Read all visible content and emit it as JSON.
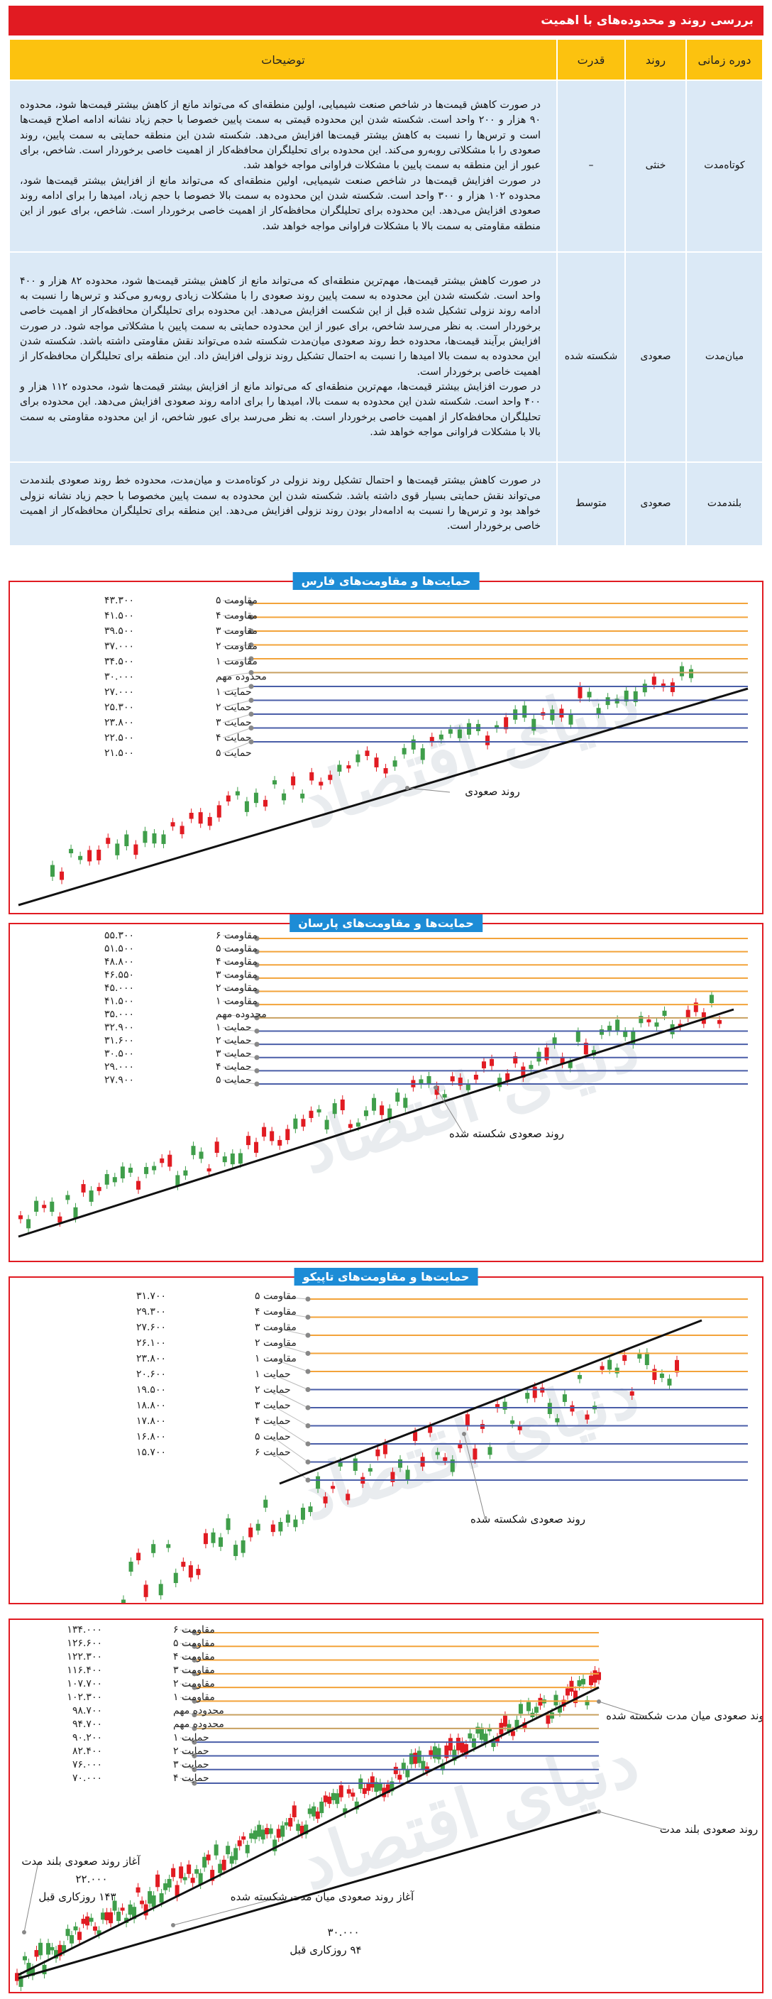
{
  "header": {
    "title": "بررسی روند و محدوده‌های با اهمیت"
  },
  "table": {
    "columns": [
      "دوره زمانی",
      "روند",
      "قدرت",
      "توضیحات"
    ],
    "rows": [
      {
        "period": "کوتاه‌مدت",
        "trend": "خنثی",
        "strength": "–",
        "description": [
          "در صورت کاهش قیمت‌ها در شاخص صنعت شیمیایی، اولین منطقه‌ای که می‌تواند مانع از کاهش بیشتر قیمت‌ها شود، محدوده ۹۰ هزار و ۲۰۰ واحد است. شکسته شدن این محدوده قیمتی به سمت پایین خصوصا با حجم زیاد نشانه ادامه اصلاح قیمت‌ها است و ترس‌ها را نسبت به کاهش بیشتر قیمت‌ها افزایش می‌دهد. شکسته شدن این منطقه حمایتی به سمت پایین، روند صعودی را با مشکلاتی روبه‌رو می‌کند. این محدوده برای تحلیلگران محافظه‌کار از اهمیت خاصی برخوردار است. شاخص، برای عبور از این منطقه به سمت پایین با مشکلات فراوانی مواجه خواهد شد.",
          "در صورت افزایش قیمت‌ها در شاخص صنعت شیمیایی، اولین منطقه‌ای که می‌تواند مانع از افزایش بیشتر قیمت‌ها شود، محدوده ۱۰۲ هزار و ۳۰۰ واحد است. شکسته شدن این محدوده به سمت بالا خصوصا با حجم زیاد، امیدها را برای ادامه روند صعودی افزایش می‌دهد. این محدوده برای تحلیلگران محافظه‌کار از اهمیت خاصی برخوردار است. شاخص، برای عبور از این منطقه مقاومتی به سمت بالا با مشکلات فراوانی مواجه خواهد شد."
        ]
      },
      {
        "period": "میان‌مدت",
        "trend": "صعودی",
        "strength": "شکسته شده",
        "description": [
          "در صورت کاهش بیشتر قیمت‌ها، مهم‌ترین منطقه‌ای که می‌تواند مانع از کاهش بیشتر قیمت‌ها شود، محدوده ۸۲ هزار و ۴۰۰ واحد است. شکسته شدن این محدوده به سمت پایین روند صعودی را با مشکلات زیادی روبه‌رو می‌کند و ترس‌ها را نسبت به ادامه روند نزولی تشکیل شده قبل از این شکست افزایش می‌دهد. این محدوده برای تحلیلگران محافظه‌کار از اهمیت خاصی برخوردار است. به نظر می‌رسد شاخص، برای عبور از این محدوده حمایتی به سمت پایین با مشکلاتی مواجه شود. در صورت افزایش برآیند قیمت‌ها، محدوده خط روند صعودی میان‌مدت شکسته شده می‌تواند نقش مقاومتی داشته باشد. شکسته شدن این محدوده به سمت بالا امیدها را نسبت به احتمال تشکیل روند نزولی افزایش داد. این منطقه برای تحلیلگران محافظه‌کار از اهمیت خاصی برخوردار است.",
          "در صورت افزایش بیشتر قیمت‌ها، مهم‌ترین منطقه‌ای که می‌تواند مانع از افزایش بیشتر قیمت‌ها شود، محدوده ۱۱۲ هزار و ۴۰۰ واحد است. شکسته شدن این محدوده به سمت بالا، امیدها را برای ادامه روند صعودی افزایش می‌دهد. این محدوده برای تحلیلگران محافظه‌کار از اهمیت خاصی برخوردار است. به نظر می‌رسد برای عبور شاخص، از این محدوده مقاومتی به سمت بالا با مشکلات فراوانی مواجه خواهد شد."
        ]
      },
      {
        "period": "بلندمدت",
        "trend": "صعودی",
        "strength": "متوسط",
        "description": [
          "در صورت کاهش بیشتر قیمت‌ها و احتمال تشکیل روند نزولی در کوتاه‌مدت و میان‌مدت، محدوده خط روند صعودی بلندمدت می‌تواند نقش حمایتی بسیار قوی داشته باشد. شکسته شدن این محدوده به سمت پایین مخصوصا با حجم زیاد نشانه نزولی خواهد بود و ترس‌ها را نسبت به ادامه‌دار بودن روند نزولی افزایش می‌دهد. این منطقه برای تحلیلگران محافظه‌کار از اهمیت خاصی برخوردار است."
        ]
      }
    ]
  },
  "chart_data": [
    {
      "type": "candlestick",
      "title": "حمایت‌ها و مقاومت‌های فارس",
      "levels": [
        {
          "label": "مقاومت ۵",
          "value_text": "۴۳.۳۰۰",
          "value": 43300,
          "kind": "resistance"
        },
        {
          "label": "مقاومت ۴",
          "value_text": "۴۱.۵۰۰",
          "value": 41500,
          "kind": "resistance"
        },
        {
          "label": "مقاومت ۳",
          "value_text": "۳۹.۵۰۰",
          "value": 39500,
          "kind": "resistance"
        },
        {
          "label": "مقاومت ۲",
          "value_text": "۳۷.۰۰۰",
          "value": 37000,
          "kind": "resistance"
        },
        {
          "label": "مقاومت ۱",
          "value_text": "۳۴.۵۰۰",
          "value": 34500,
          "kind": "resistance"
        },
        {
          "label": "محدوده مهم",
          "value_text": "۳۰.۰۰۰",
          "value": 30000,
          "kind": "important"
        },
        {
          "label": "حمایت ۱",
          "value_text": "۲۷.۰۰۰",
          "value": 27000,
          "kind": "support"
        },
        {
          "label": "حمایت ۲",
          "value_text": "۲۵.۳۰۰",
          "value": 25300,
          "kind": "support"
        },
        {
          "label": "حمایت ۳",
          "value_text": "۲۳.۸۰۰",
          "value": 23800,
          "kind": "support"
        },
        {
          "label": "حمایت ۴",
          "value_text": "۲۲.۵۰۰",
          "value": 22500,
          "kind": "support"
        },
        {
          "label": "حمایت ۵",
          "value_text": "۲۱.۵۰۰",
          "value": 21500,
          "kind": "support"
        }
      ],
      "annotations": [
        "روند صعودی"
      ],
      "colors": {
        "resistance": "#f3a33a",
        "important": "#c8a060",
        "support": "#4a5ea8",
        "up": "#3f9e4a",
        "down": "#e11b22",
        "trend": "#111111"
      }
    },
    {
      "type": "candlestick",
      "title": "حمایت‌ها و مقاومت‌های پارسان",
      "levels": [
        {
          "label": "مقاومت ۶",
          "value_text": "۵۵.۳۰۰",
          "value": 55300,
          "kind": "resistance"
        },
        {
          "label": "مقاومت ۵",
          "value_text": "۵۱.۵۰۰",
          "value": 51500,
          "kind": "resistance"
        },
        {
          "label": "مقاومت ۴",
          "value_text": "۴۸.۸۰۰",
          "value": 48800,
          "kind": "resistance"
        },
        {
          "label": "مقاومت ۳",
          "value_text": "۴۶.۵۵۰",
          "value": 46550,
          "kind": "resistance"
        },
        {
          "label": "مقاومت ۲",
          "value_text": "۴۵.۰۰۰",
          "value": 45000,
          "kind": "resistance"
        },
        {
          "label": "مقاومت ۱",
          "value_text": "۴۱.۵۰۰",
          "value": 41500,
          "kind": "resistance"
        },
        {
          "label": "محدوده مهم",
          "value_text": "۳۵.۰۰۰",
          "value": 35000,
          "kind": "important"
        },
        {
          "label": "حمایت ۱",
          "value_text": "۳۲.۹۰۰",
          "value": 32900,
          "kind": "support"
        },
        {
          "label": "حمایت ۲",
          "value_text": "۳۱.۶۰۰",
          "value": 31600,
          "kind": "support"
        },
        {
          "label": "حمایت ۳",
          "value_text": "۳۰.۵۰۰",
          "value": 30500,
          "kind": "support"
        },
        {
          "label": "حمایت ۴",
          "value_text": "۲۹.۰۰۰",
          "value": 29000,
          "kind": "support"
        },
        {
          "label": "حمایت ۵",
          "value_text": "۲۷.۹۰۰",
          "value": 27900,
          "kind": "support"
        }
      ],
      "annotations": [
        "روند صعودی شکسته شده"
      ],
      "colors": {
        "resistance": "#f3a33a",
        "important": "#c8a060",
        "support": "#4a5ea8",
        "up": "#3f9e4a",
        "down": "#e11b22",
        "trend": "#111111"
      }
    },
    {
      "type": "candlestick",
      "title": "حمایت‌ها و مقاومت‌های تاپیکو",
      "levels": [
        {
          "label": "مقاومت ۵",
          "value_text": "۳۱.۷۰۰",
          "value": 31700,
          "kind": "resistance"
        },
        {
          "label": "مقاومت ۴",
          "value_text": "۲۹.۳۰۰",
          "value": 29300,
          "kind": "resistance"
        },
        {
          "label": "مقاومت ۳",
          "value_text": "۲۷.۶۰۰",
          "value": 27600,
          "kind": "resistance"
        },
        {
          "label": "مقاومت ۲",
          "value_text": "۲۶.۱۰۰",
          "value": 26100,
          "kind": "resistance"
        },
        {
          "label": "مقاومت ۱",
          "value_text": "۲۳.۸۰۰",
          "value": 23800,
          "kind": "resistance"
        },
        {
          "label": "حمایت ۱",
          "value_text": "۲۰.۶۰۰",
          "value": 20600,
          "kind": "support"
        },
        {
          "label": "حمایت ۲",
          "value_text": "۱۹.۵۰۰",
          "value": 19500,
          "kind": "support"
        },
        {
          "label": "حمایت ۳",
          "value_text": "۱۸.۸۰۰",
          "value": 18800,
          "kind": "support"
        },
        {
          "label": "حمایت ۴",
          "value_text": "۱۷.۸۰۰",
          "value": 17800,
          "kind": "support"
        },
        {
          "label": "حمایت ۵",
          "value_text": "۱۶.۸۰۰",
          "value": 16800,
          "kind": "support"
        },
        {
          "label": "حمایت ۶",
          "value_text": "۱۵.۷۰۰",
          "value": 15700,
          "kind": "support"
        }
      ],
      "annotations": [
        "روند صعودی شکسته شده"
      ],
      "colors": {
        "resistance": "#f3a33a",
        "important": "#c8a060",
        "support": "#4a5ea8",
        "up": "#3f9e4a",
        "down": "#e11b22",
        "trend": "#111111"
      }
    },
    {
      "type": "candlestick",
      "title": "",
      "levels": [
        {
          "label": "مقاومت ۶",
          "value_text": "۱۳۴.۰۰۰",
          "value": 134000,
          "kind": "resistance"
        },
        {
          "label": "مقاومت ۵",
          "value_text": "۱۲۶.۶۰۰",
          "value": 126600,
          "kind": "resistance"
        },
        {
          "label": "مقاومت ۴",
          "value_text": "۱۲۲.۳۰۰",
          "value": 122300,
          "kind": "resistance"
        },
        {
          "label": "مقاومت ۳",
          "value_text": "۱۱۶.۴۰۰",
          "value": 116400,
          "kind": "resistance"
        },
        {
          "label": "مقاومت ۲",
          "value_text": "۱۰۷.۷۰۰",
          "value": 107700,
          "kind": "resistance"
        },
        {
          "label": "مقاومت ۱",
          "value_text": "۱۰۲.۳۰۰",
          "value": 102300,
          "kind": "resistance"
        },
        {
          "label": "محدوده مهم",
          "value_text": "۹۸.۷۰۰",
          "value": 98700,
          "kind": "important"
        },
        {
          "label": "محدوده مهم",
          "value_text": "۹۴.۷۰۰",
          "value": 94700,
          "kind": "important"
        },
        {
          "label": "حمایت ۱",
          "value_text": "۹۰.۲۰۰",
          "value": 90200,
          "kind": "support"
        },
        {
          "label": "حمایت ۲",
          "value_text": "۸۲.۴۰۰",
          "value": 82400,
          "kind": "support"
        },
        {
          "label": "حمایت ۳",
          "value_text": "۷۶.۰۰۰",
          "value": 76000,
          "kind": "support"
        },
        {
          "label": "حمایت ۴",
          "value_text": "۷۰.۰۰۰",
          "value": 70000,
          "kind": "support"
        }
      ],
      "annotations": [
        "روند صعودی میان مدت شکسته شده",
        "روند صعودی بلند مدت",
        "آغاز روند صعودی بلند مدت",
        "۲۲.۰۰۰",
        "۱۴۳ روزکاری قبل",
        "آغاز روند صعودی میان مدت شکسته شده",
        "۳۰.۰۰۰",
        "۹۴ روزکاری قبل"
      ],
      "colors": {
        "resistance": "#f3a33a",
        "important": "#c8a060",
        "support": "#4a5ea8",
        "up": "#3f9e4a",
        "down": "#e11b22",
        "trend": "#111111"
      }
    }
  ],
  "watermark": "دنیای اقتصاد"
}
